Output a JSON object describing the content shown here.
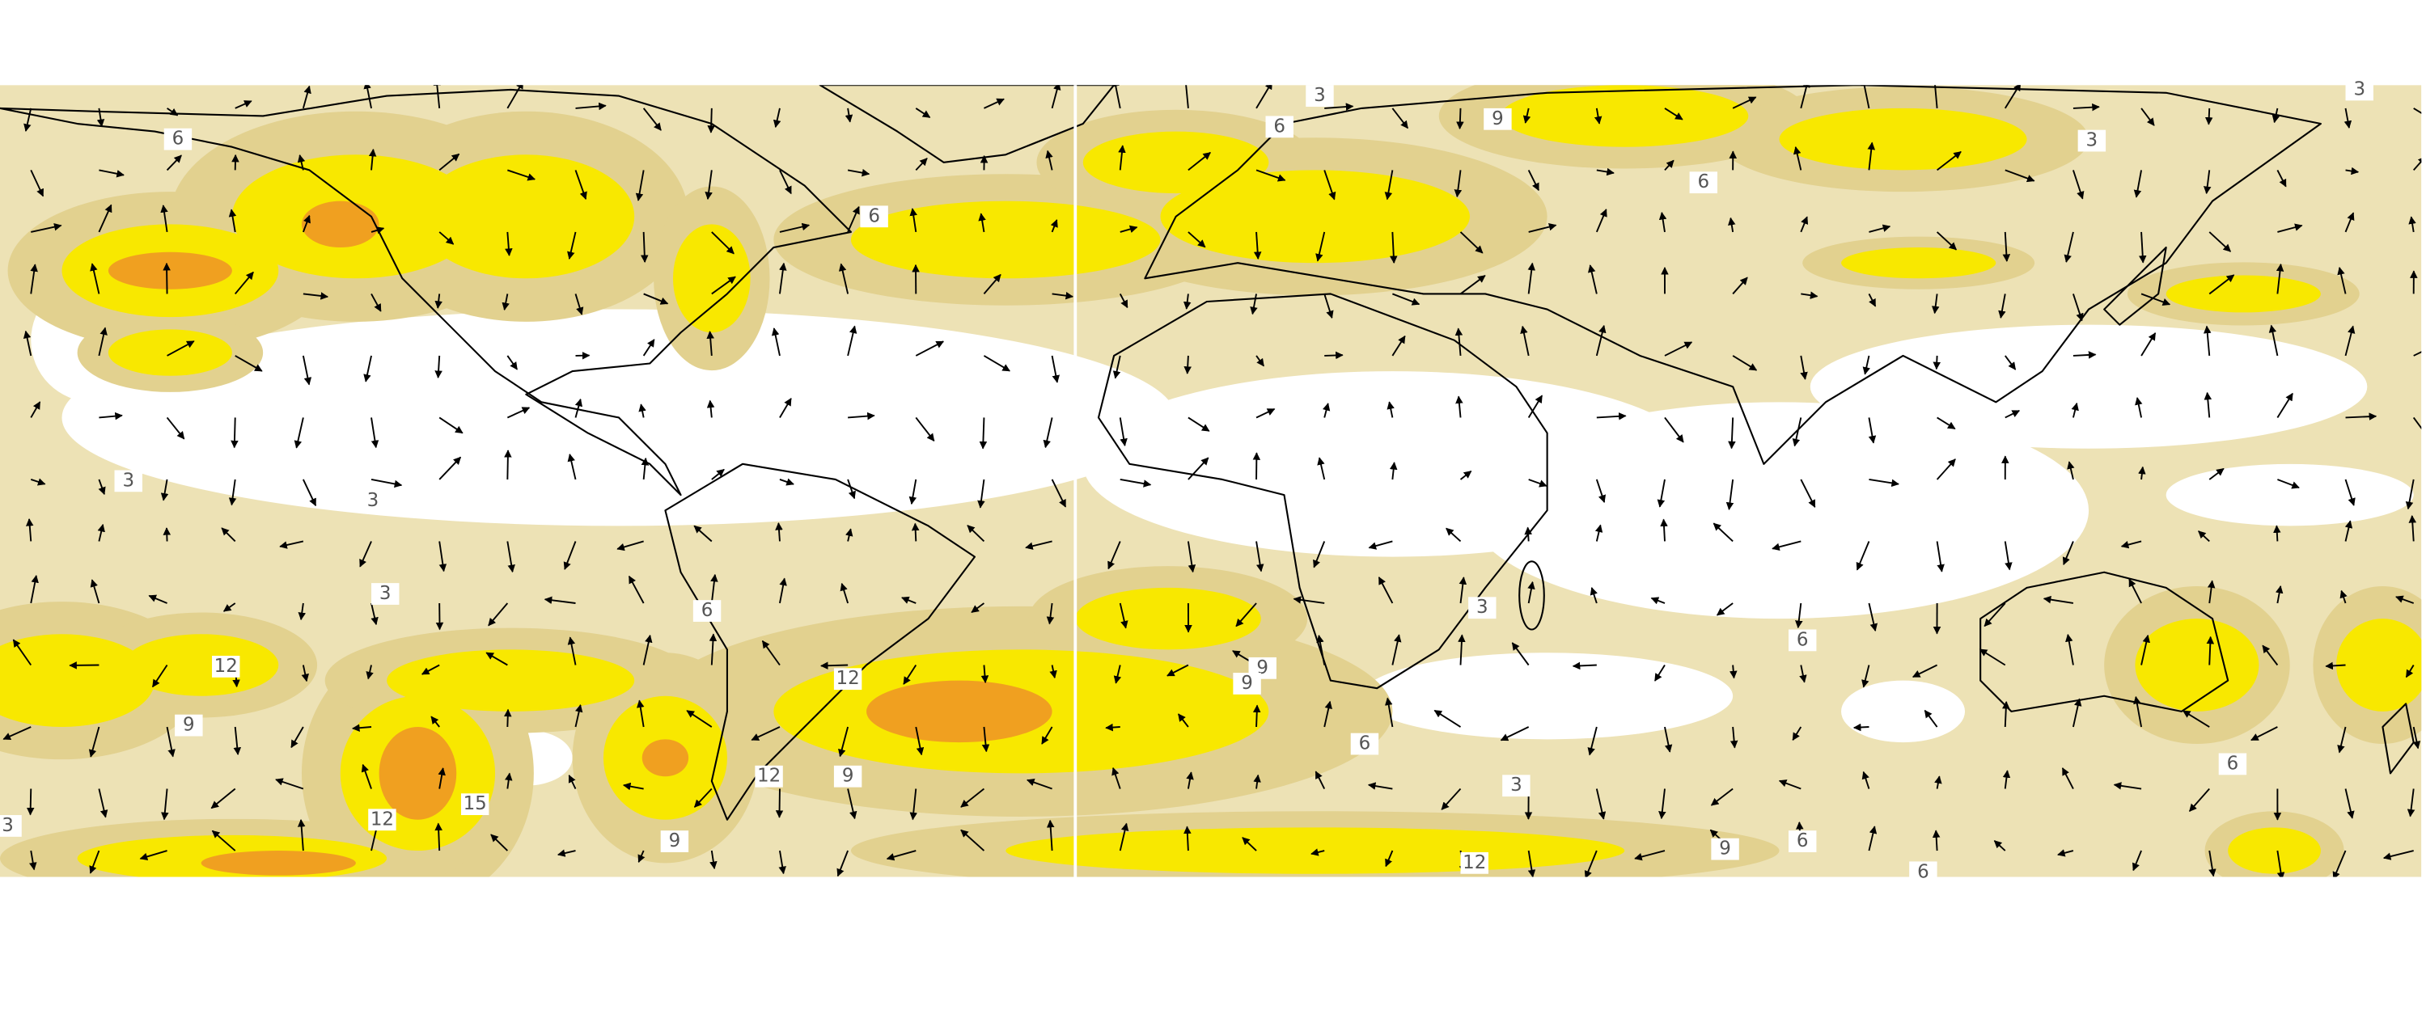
{
  "map": {
    "contour_labels": [
      "6",
      "3",
      "6",
      "9",
      "3",
      "3",
      "6",
      "6",
      "3",
      "3",
      "3",
      "6",
      "3",
      "6",
      "12",
      "12",
      "9",
      "9",
      "9",
      "6",
      "12",
      "9",
      "3",
      "6",
      "3",
      "12",
      "15",
      "9",
      "9",
      "6",
      "12",
      "6"
    ]
  }
}
